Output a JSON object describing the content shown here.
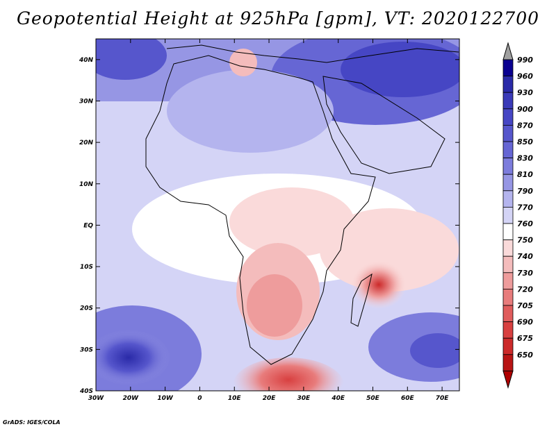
{
  "title": "Geopotential Height at 925hPa [gpm], VT: 2020122700",
  "footer": "GrADS: IGES/COLA",
  "map": {
    "lat_labels": [
      "40N",
      "30N",
      "20N",
      "10N",
      "EQ",
      "10S",
      "20S",
      "30S",
      "40S"
    ],
    "lon_labels": [
      "30W",
      "20W",
      "10W",
      "0",
      "10E",
      "20E",
      "30E",
      "40E",
      "50E",
      "60E",
      "70E"
    ],
    "lat_range": [
      -40,
      45
    ],
    "lon_range": [
      -30,
      75
    ]
  },
  "colorbar": {
    "levels": [
      "990",
      "960",
      "930",
      "900",
      "870",
      "850",
      "830",
      "810",
      "790",
      "770",
      "760",
      "750",
      "740",
      "730",
      "720",
      "705",
      "690",
      "675",
      "650"
    ],
    "colors": [
      "#0a0090",
      "#2a2aa8",
      "#3a3ab8",
      "#4646c4",
      "#5656cc",
      "#6666d4",
      "#7c7cdc",
      "#9696e4",
      "#b4b4ee",
      "#d4d4f6",
      "#ffffff",
      "#fadada",
      "#f4bcbc",
      "#ee9c9c",
      "#e87c7c",
      "#e05c5c",
      "#d84040",
      "#cc2a2a",
      "#b81414"
    ],
    "over_color": "#a0a0a0",
    "under_color": "#b00000"
  }
}
